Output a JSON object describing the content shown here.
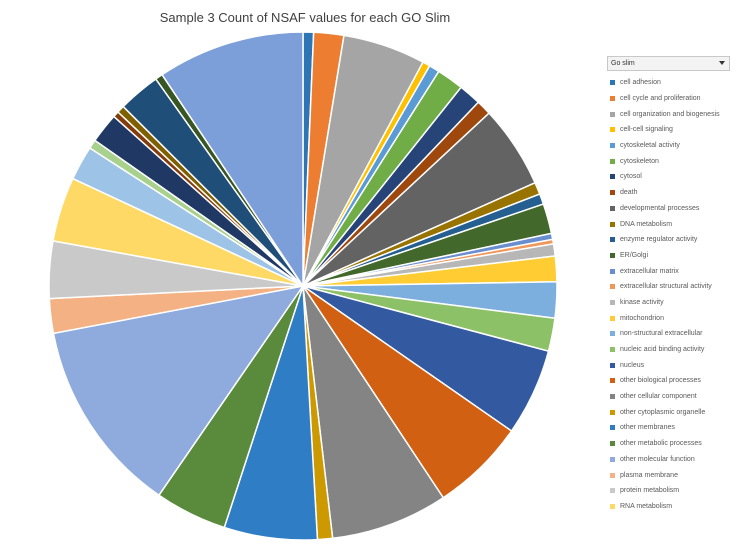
{
  "chart_data": {
    "type": "pie",
    "title": "Sample 3 Count of NSAF values for each GO Slim",
    "legend_position": "right",
    "legend_header": "Go slim",
    "categories": [
      "cell adhesion",
      "cell cycle and proliferation",
      "cell organization and biogenesis",
      "cell-cell signaling",
      "cytoskeletal activity",
      "cytoskeleton",
      "cytosol",
      "death",
      "developmental processes",
      "DNA metabolism",
      "enzyme regulator activity",
      "ER/Golgi",
      "extracellular matrix",
      "extracellular structural activity",
      "kinase activity",
      "mitochondrion",
      "non-structural extracellular",
      "nucleic acid binding activity",
      "nucleus",
      "other biological processes",
      "other cellular component",
      "other cytoplasmic organelle",
      "other membranes",
      "other metabolic processes",
      "other molecular function",
      "plasma membrane",
      "protein metabolism",
      "RNA metabolism"
    ],
    "slices": [
      {
        "label": "cell adhesion",
        "value": 0.7,
        "color": "#2e75b6"
      },
      {
        "label": "cell cycle and proliferation",
        "value": 2.0,
        "color": "#ed7d31"
      },
      {
        "label": "cell organization and biogenesis",
        "value": 5.5,
        "color": "#a5a5a5"
      },
      {
        "label": "cell-cell signaling",
        "value": 0.5,
        "color": "#ffc000"
      },
      {
        "label": "cytoskeletal activity",
        "value": 0.7,
        "color": "#5b9bd5"
      },
      {
        "label": "cytoskeleton",
        "value": 1.8,
        "color": "#70ad47"
      },
      {
        "label": "cytosol",
        "value": 1.5,
        "color": "#264478"
      },
      {
        "label": "death",
        "value": 1.0,
        "color": "#9e480e"
      },
      {
        "label": "developmental processes",
        "value": 5.5,
        "color": "#636363"
      },
      {
        "label": "DNA metabolism",
        "value": 0.8,
        "color": "#997300"
      },
      {
        "label": "enzyme regulator activity",
        "value": 0.7,
        "color": "#255e91"
      },
      {
        "label": "ER/Golgi",
        "value": 2.0,
        "color": "#43682b"
      },
      {
        "label": "extracellular matrix",
        "value": 0.4,
        "color": "#698ed0"
      },
      {
        "label": "extracellular structural activity",
        "value": 0.3,
        "color": "#f1975a"
      },
      {
        "label": "kinase activity",
        "value": 0.8,
        "color": "#b7b7b7"
      },
      {
        "label": "mitochondrion",
        "value": 1.7,
        "color": "#ffcd33"
      },
      {
        "label": "non-structural extracellular",
        "value": 2.4,
        "color": "#7cafdd"
      },
      {
        "label": "nucleic acid binding activity",
        "value": 2.2,
        "color": "#8cc168"
      },
      {
        "label": "nucleus",
        "value": 5.8,
        "color": "#335aa1"
      },
      {
        "label": "other biological processes",
        "value": 6.3,
        "color": "#d26012"
      },
      {
        "label": "other cellular component",
        "value": 7.8,
        "color": "#848484"
      },
      {
        "label": "other cytoplasmic organelle",
        "value": 1.0,
        "color": "#cc9a00"
      },
      {
        "label": "other membranes",
        "value": 6.2,
        "color": "#2f7ec5"
      },
      {
        "label": "other metabolic processes",
        "value": 4.8,
        "color": "#5a8a3b"
      },
      {
        "label": "other molecular function",
        "value": 13.0,
        "color": "#8faadc"
      },
      {
        "label": "plasma membrane",
        "value": 2.3,
        "color": "#f4b183"
      },
      {
        "label": "protein metabolism",
        "value": 3.8,
        "color": "#c9c9c9"
      },
      {
        "label": "RNA metabolism",
        "value": 4.3,
        "color": "#ffd966"
      },
      {
        "label": "",
        "value": 2.3,
        "color": "#9dc3e6"
      },
      {
        "label": "",
        "value": 0.6,
        "color": "#a9d18e"
      },
      {
        "label": "",
        "value": 2.0,
        "color": "#203864"
      },
      {
        "label": "",
        "value": 0.4,
        "color": "#843c0c"
      },
      {
        "label": "",
        "value": 0.5,
        "color": "#7f6000"
      },
      {
        "label": "",
        "value": 2.8,
        "color": "#1f4e79"
      },
      {
        "label": "",
        "value": 0.5,
        "color": "#375623"
      },
      {
        "label": "",
        "value": 9.8,
        "color": "#7c9fd9"
      }
    ]
  }
}
